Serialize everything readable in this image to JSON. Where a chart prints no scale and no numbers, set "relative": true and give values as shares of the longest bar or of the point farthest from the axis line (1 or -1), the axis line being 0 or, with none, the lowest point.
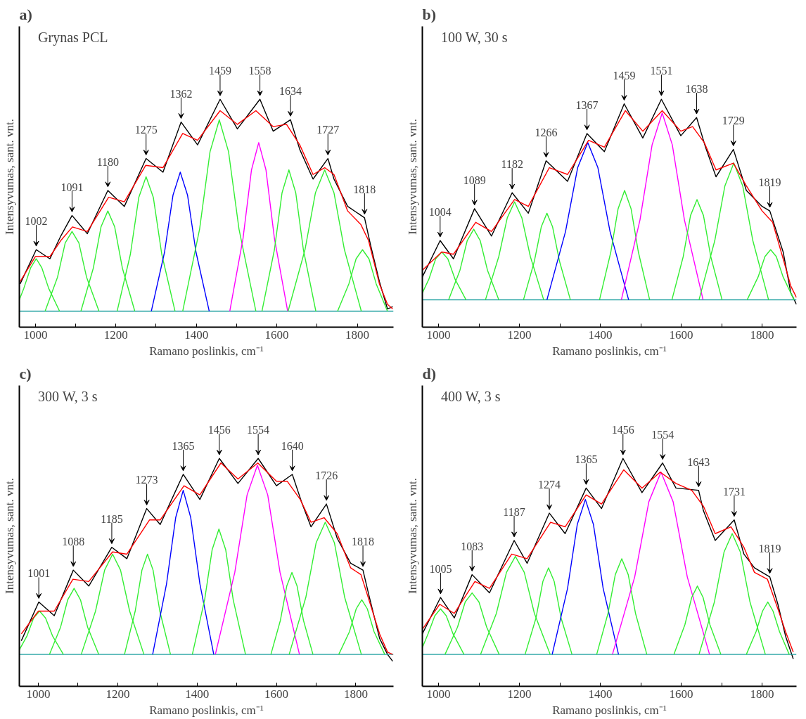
{
  "chart_data": [
    {
      "type": "line",
      "relative": true,
      "title": "a)",
      "subtitle": "Grynas PCL",
      "xlabel": "Ramano poslinkis, cm⁻¹",
      "ylabel": "Intensyvumas, sant. vnt.",
      "xlim": [
        960,
        1890
      ],
      "xticks": [
        1000,
        {
          "value": 1100,
          "label": null
        },
        1200,
        {
          "value": 1300,
          "label": null
        },
        1400,
        {
          "value": 1500,
          "label": null
        },
        1600,
        {
          "value": 1700,
          "label": null
        },
        1800
      ],
      "grid": false,
      "series": [
        {
          "color": "#000000",
          "x": [
            962,
            1002,
            1036,
            1063,
            1091,
            1129,
            1180,
            1221,
            1275,
            1317,
            1362,
            1403,
            1459,
            1502,
            1558,
            1591,
            1634,
            1657,
            1690,
            1727,
            1742,
            1776,
            1818,
            1833,
            1855,
            1875,
            1888
          ],
          "values": [
            0.19,
            0.34,
            0.3,
            0.4,
            0.49,
            0.41,
            0.6,
            0.53,
            0.74,
            0.68,
            0.9,
            0.8,
            1.0,
            0.87,
            1.0,
            0.86,
            0.91,
            0.78,
            0.65,
            0.74,
            0.65,
            0.53,
            0.48,
            0.36,
            0.2,
            0.08,
            0.09
          ]
        },
        {
          "color": "#20a0a0",
          "x": [
            960,
            1890
          ],
          "values": [
            0.07,
            0.07
          ]
        },
        {
          "color": "#33ee33",
          "x": [
            960,
            971,
            988,
            1002,
            1016,
            1033,
            1060
          ],
          "values": [
            0.12,
            0.17,
            0.26,
            0.3,
            0.26,
            0.17,
            0.07
          ]
        },
        {
          "color": "#33ee33",
          "x": [
            1024,
            1055,
            1074,
            1091,
            1108,
            1127,
            1158
          ],
          "values": [
            0.07,
            0.22,
            0.37,
            0.42,
            0.37,
            0.22,
            0.07
          ]
        },
        {
          "color": "#33ee33",
          "x": [
            1113,
            1144,
            1163,
            1180,
            1197,
            1216,
            1247
          ],
          "values": [
            0.07,
            0.26,
            0.44,
            0.51,
            0.44,
            0.26,
            0.07
          ]
        },
        {
          "color": "#33ee33",
          "x": [
            1203,
            1236,
            1257,
            1275,
            1293,
            1314,
            1347
          ],
          "values": [
            0.07,
            0.32,
            0.57,
            0.66,
            0.57,
            0.32,
            0.07
          ]
        },
        {
          "color": "#0000ff",
          "x": [
            1288,
            1321,
            1342,
            1360,
            1378,
            1399,
            1432
          ],
          "values": [
            0.07,
            0.33,
            0.58,
            0.68,
            0.58,
            0.33,
            0.07
          ]
        },
        {
          "color": "#33ee33",
          "x": [
            1366,
            1408,
            1434,
            1457,
            1480,
            1506,
            1548
          ],
          "values": [
            0.07,
            0.43,
            0.77,
            0.91,
            0.77,
            0.43,
            0.07
          ]
        },
        {
          "color": "#ff00ff",
          "x": [
            1483,
            1516,
            1537,
            1555,
            1573,
            1594,
            1627
          ],
          "values": [
            0.07,
            0.39,
            0.69,
            0.81,
            0.69,
            0.39,
            0.07
          ]
        },
        {
          "color": "#33ee33",
          "x": [
            1563,
            1594,
            1613,
            1630,
            1647,
            1666,
            1697
          ],
          "values": [
            0.07,
            0.34,
            0.59,
            0.69,
            0.59,
            0.34,
            0.07
          ]
        },
        {
          "color": "#33ee33",
          "x": [
            1628,
            1670,
            1696,
            1719,
            1742,
            1768,
            1810
          ],
          "values": [
            0.07,
            0.34,
            0.59,
            0.69,
            0.59,
            0.34,
            0.07
          ]
        },
        {
          "color": "#33ee33",
          "x": [
            1751,
            1779,
            1797,
            1813,
            1829,
            1847,
            1875
          ],
          "values": [
            0.07,
            0.19,
            0.3,
            0.34,
            0.3,
            0.19,
            0.07
          ]
        },
        {
          "color": "#ff0000",
          "x": [
            962,
            1000,
            1036,
            1063,
            1092,
            1129,
            1182,
            1221,
            1274,
            1317,
            1366,
            1403,
            1459,
            1502,
            1548,
            1591,
            1624,
            1657,
            1690,
            1719,
            1742,
            1776,
            1809,
            1828,
            1855,
            1875,
            1888
          ],
          "values": [
            0.2,
            0.31,
            0.31,
            0.38,
            0.44,
            0.42,
            0.57,
            0.55,
            0.71,
            0.7,
            0.85,
            0.82,
            0.95,
            0.89,
            0.95,
            0.88,
            0.89,
            0.8,
            0.67,
            0.7,
            0.67,
            0.51,
            0.45,
            0.38,
            0.19,
            0.1,
            0.08
          ]
        }
      ],
      "annotations": [
        {
          "text": "1002",
          "x": 1002,
          "y": 0.34
        },
        {
          "text": "1091",
          "x": 1091,
          "y": 0.49
        },
        {
          "text": "1180",
          "x": 1180,
          "y": 0.6
        },
        {
          "text": "1275",
          "x": 1275,
          "y": 0.74
        },
        {
          "text": "1362",
          "x": 1362,
          "y": 0.9
        },
        {
          "text": "1459",
          "x": 1459,
          "y": 1.0
        },
        {
          "text": "1558",
          "x": 1558,
          "y": 1.0
        },
        {
          "text": "1634",
          "x": 1634,
          "y": 0.91
        },
        {
          "text": "1727",
          "x": 1727,
          "y": 0.74
        },
        {
          "text": "1818",
          "x": 1818,
          "y": 0.48
        }
      ]
    },
    {
      "type": "line",
      "relative": true,
      "title": "b)",
      "subtitle": "100 W, 30 s",
      "xlabel": "Ramano poslinkis, cm⁻¹",
      "ylabel": "Intensyvumas, sant. vnt.",
      "xlim": [
        960,
        1885
      ],
      "xticks": [
        1000,
        {
          "value": 1100,
          "label": null
        },
        1200,
        {
          "value": 1300,
          "label": null
        },
        1400,
        {
          "value": 1500,
          "label": null
        },
        1600,
        {
          "value": 1700,
          "label": null
        },
        1800
      ],
      "grid": false,
      "series": [
        {
          "color": "#000000",
          "x": [
            960,
            1004,
            1037,
            1089,
            1131,
            1182,
            1222,
            1266,
            1319,
            1367,
            1410,
            1459,
            1505,
            1551,
            1599,
            1638,
            1660,
            1686,
            1729,
            1761,
            1800,
            1819,
            1852,
            1871,
            1885
          ],
          "values": [
            0.22,
            0.38,
            0.3,
            0.52,
            0.4,
            0.59,
            0.5,
            0.73,
            0.64,
            0.85,
            0.77,
            0.98,
            0.83,
            1.0,
            0.84,
            0.92,
            0.79,
            0.66,
            0.78,
            0.6,
            0.53,
            0.51,
            0.33,
            0.15,
            0.1
          ]
        },
        {
          "color": "#20a0a0",
          "x": [
            960,
            1885
          ],
          "values": [
            0.12,
            0.12
          ]
        },
        {
          "color": "#33ee33",
          "x": [
            960,
            976,
            993,
            1008,
            1023,
            1041,
            1068
          ],
          "values": [
            0.15,
            0.21,
            0.3,
            0.33,
            0.3,
            0.21,
            0.12
          ]
        },
        {
          "color": "#33ee33",
          "x": [
            1025,
            1053,
            1071,
            1087,
            1103,
            1121,
            1149
          ],
          "values": [
            0.12,
            0.25,
            0.38,
            0.43,
            0.38,
            0.25,
            0.12
          ]
        },
        {
          "color": "#33ee33",
          "x": [
            1116,
            1149,
            1170,
            1188,
            1206,
            1227,
            1260
          ],
          "values": [
            0.12,
            0.31,
            0.48,
            0.55,
            0.48,
            0.31,
            0.12
          ]
        },
        {
          "color": "#33ee33",
          "x": [
            1210,
            1237,
            1254,
            1268,
            1282,
            1299,
            1326
          ],
          "values": [
            0.12,
            0.29,
            0.44,
            0.5,
            0.44,
            0.29,
            0.12
          ]
        },
        {
          "color": "#0000ff",
          "x": [
            1268,
            1314,
            1344,
            1369,
            1394,
            1424,
            1470
          ],
          "values": [
            0.12,
            0.42,
            0.7,
            0.81,
            0.7,
            0.42,
            0.12
          ]
        },
        {
          "color": "#33ee33",
          "x": [
            1398,
            1426,
            1444,
            1460,
            1476,
            1494,
            1522
          ],
          "values": [
            0.12,
            0.33,
            0.52,
            0.6,
            0.52,
            0.33,
            0.12
          ]
        },
        {
          "color": "#ff00ff",
          "x": [
            1452,
            1498,
            1528,
            1553,
            1578,
            1608,
            1654
          ],
          "values": [
            0.12,
            0.47,
            0.8,
            0.94,
            0.8,
            0.47,
            0.12
          ]
        },
        {
          "color": "#33ee33",
          "x": [
            1577,
            1605,
            1623,
            1639,
            1655,
            1673,
            1701
          ],
          "values": [
            0.12,
            0.31,
            0.49,
            0.56,
            0.49,
            0.31,
            0.12
          ]
        },
        {
          "color": "#33ee33",
          "x": [
            1644,
            1683,
            1708,
            1730,
            1752,
            1777,
            1816
          ],
          "values": [
            0.12,
            0.38,
            0.62,
            0.72,
            0.62,
            0.38,
            0.12
          ]
        },
        {
          "color": "#33ee33",
          "x": [
            1763,
            1790,
            1807,
            1821,
            1835,
            1852,
            1879
          ],
          "values": [
            0.12,
            0.22,
            0.31,
            0.34,
            0.31,
            0.22,
            0.12
          ]
        },
        {
          "color": "#ff0000",
          "x": [
            960,
            1008,
            1037,
            1092,
            1131,
            1188,
            1222,
            1274,
            1319,
            1371,
            1410,
            1462,
            1505,
            1553,
            1599,
            1628,
            1657,
            1686,
            1729,
            1761,
            1800,
            1826,
            1852,
            1871,
            1885
          ],
          "values": [
            0.25,
            0.33,
            0.32,
            0.46,
            0.42,
            0.56,
            0.53,
            0.7,
            0.67,
            0.82,
            0.79,
            0.95,
            0.86,
            0.95,
            0.86,
            0.88,
            0.81,
            0.69,
            0.72,
            0.62,
            0.51,
            0.46,
            0.3,
            0.18,
            0.13
          ]
        }
      ],
      "annotations": [
        {
          "text": "1004",
          "x": 1004,
          "y": 0.38
        },
        {
          "text": "1089",
          "x": 1089,
          "y": 0.52
        },
        {
          "text": "1182",
          "x": 1182,
          "y": 0.59
        },
        {
          "text": "1266",
          "x": 1266,
          "y": 0.73
        },
        {
          "text": "1367",
          "x": 1367,
          "y": 0.85
        },
        {
          "text": "1459",
          "x": 1459,
          "y": 0.98
        },
        {
          "text": "1551",
          "x": 1551,
          "y": 1.0
        },
        {
          "text": "1638",
          "x": 1638,
          "y": 0.92
        },
        {
          "text": "1729",
          "x": 1729,
          "y": 0.78
        },
        {
          "text": "1819",
          "x": 1819,
          "y": 0.51
        }
      ]
    },
    {
      "type": "line",
      "relative": true,
      "title": "c)",
      "subtitle": "300 W, 3 s",
      "xlabel": "Ramano poslinkis, cm⁻¹",
      "ylabel": "Intensyvumas, sant. vnt.",
      "xlim": [
        952,
        1895
      ],
      "xticks": [
        1000,
        {
          "value": 1100,
          "label": null
        },
        1200,
        {
          "value": 1300,
          "label": null
        },
        1400,
        {
          "value": 1500,
          "label": null
        },
        1600,
        {
          "value": 1700,
          "label": null
        },
        1800
      ],
      "grid": false,
      "series": [
        {
          "color": "#000000",
          "x": [
            957,
            1001,
            1040,
            1088,
            1127,
            1185,
            1223,
            1273,
            1307,
            1365,
            1407,
            1456,
            1503,
            1554,
            1600,
            1640,
            1665,
            1687,
            1726,
            1753,
            1787,
            1818,
            1833,
            1860,
            1880,
            1893
          ],
          "values": [
            0.2,
            0.37,
            0.31,
            0.51,
            0.44,
            0.61,
            0.56,
            0.78,
            0.71,
            0.93,
            0.82,
            1.0,
            0.89,
            1.0,
            0.88,
            0.93,
            0.8,
            0.7,
            0.8,
            0.65,
            0.54,
            0.51,
            0.4,
            0.21,
            0.14,
            0.11
          ]
        },
        {
          "color": "#20a0a0",
          "x": [
            952,
            1895
          ],
          "values": [
            0.14,
            0.14
          ]
        },
        {
          "color": "#33ee33",
          "x": [
            952,
            971,
            988,
            1003,
            1018,
            1036,
            1063
          ],
          "values": [
            0.16,
            0.22,
            0.3,
            0.33,
            0.3,
            0.22,
            0.14
          ]
        },
        {
          "color": "#33ee33",
          "x": [
            1028,
            1056,
            1074,
            1090,
            1106,
            1124,
            1152
          ],
          "values": [
            0.14,
            0.26,
            0.38,
            0.43,
            0.38,
            0.26,
            0.14
          ]
        },
        {
          "color": "#33ee33",
          "x": [
            1108,
            1144,
            1167,
            1187,
            1207,
            1230,
            1266
          ],
          "values": [
            0.14,
            0.33,
            0.51,
            0.58,
            0.51,
            0.33,
            0.14
          ]
        },
        {
          "color": "#33ee33",
          "x": [
            1217,
            1244,
            1261,
            1275,
            1289,
            1306,
            1333
          ],
          "values": [
            0.14,
            0.33,
            0.51,
            0.58,
            0.51,
            0.33,
            0.14
          ]
        },
        {
          "color": "#0000ff",
          "x": [
            1288,
            1323,
            1346,
            1365,
            1384,
            1407,
            1442
          ],
          "values": [
            0.14,
            0.45,
            0.74,
            0.86,
            0.74,
            0.45,
            0.14
          ]
        },
        {
          "color": "#33ee33",
          "x": [
            1388,
            1419,
            1438,
            1455,
            1472,
            1491,
            1522
          ],
          "values": [
            0.14,
            0.38,
            0.6,
            0.69,
            0.6,
            0.38,
            0.14
          ]
        },
        {
          "color": "#ff00ff",
          "x": [
            1446,
            1495,
            1526,
            1552,
            1578,
            1609,
            1658
          ],
          "values": [
            0.14,
            0.5,
            0.84,
            0.97,
            0.84,
            0.5,
            0.14
          ]
        },
        {
          "color": "#33ee33",
          "x": [
            1586,
            1610,
            1626,
            1639,
            1652,
            1668,
            1692
          ],
          "values": [
            0.14,
            0.29,
            0.44,
            0.5,
            0.44,
            0.29,
            0.14
          ]
        },
        {
          "color": "#33ee33",
          "x": [
            1632,
            1674,
            1700,
            1723,
            1746,
            1772,
            1814
          ],
          "values": [
            0.14,
            0.39,
            0.63,
            0.72,
            0.63,
            0.39,
            0.14
          ]
        },
        {
          "color": "#33ee33",
          "x": [
            1757,
            1784,
            1801,
            1815,
            1829,
            1846,
            1873
          ],
          "values": [
            0.14,
            0.24,
            0.34,
            0.38,
            0.34,
            0.24,
            0.14
          ]
        },
        {
          "color": "#ff0000",
          "x": [
            957,
            1000,
            1040,
            1087,
            1127,
            1187,
            1223,
            1280,
            1307,
            1367,
            1407,
            1460,
            1503,
            1553,
            1600,
            1627,
            1660,
            1687,
            1720,
            1753,
            1787,
            1813,
            1833,
            1860,
            1880,
            1893
          ],
          "values": [
            0.23,
            0.33,
            0.33,
            0.47,
            0.46,
            0.59,
            0.58,
            0.73,
            0.73,
            0.88,
            0.84,
            0.98,
            0.91,
            0.98,
            0.9,
            0.9,
            0.82,
            0.72,
            0.74,
            0.67,
            0.52,
            0.49,
            0.38,
            0.23,
            0.15,
            0.14
          ]
        }
      ],
      "annotations": [
        {
          "text": "1001",
          "x": 1001,
          "y": 0.37
        },
        {
          "text": "1088",
          "x": 1088,
          "y": 0.51
        },
        {
          "text": "1185",
          "x": 1185,
          "y": 0.61
        },
        {
          "text": "1273",
          "x": 1273,
          "y": 0.78
        },
        {
          "text": "1365",
          "x": 1365,
          "y": 0.93
        },
        {
          "text": "1456",
          "x": 1456,
          "y": 1.0
        },
        {
          "text": "1554",
          "x": 1554,
          "y": 1.0
        },
        {
          "text": "1640",
          "x": 1640,
          "y": 0.93
        },
        {
          "text": "1726",
          "x": 1726,
          "y": 0.8
        },
        {
          "text": "1818",
          "x": 1818,
          "y": 0.51
        }
      ]
    },
    {
      "type": "line",
      "relative": true,
      "title": "d)",
      "subtitle": "400 W, 3 s",
      "xlabel": "Ramano poslinkis, cm⁻¹",
      "ylabel": "Intensyvumas, sant. vnt.",
      "xlim": [
        960,
        1885
      ],
      "xticks": [
        1000,
        {
          "value": 1100,
          "label": null
        },
        1200,
        {
          "value": 1300,
          "label": null
        },
        1400,
        {
          "value": 1500,
          "label": null
        },
        1600,
        {
          "value": 1700,
          "label": null
        },
        1800
      ],
      "grid": false,
      "series": [
        {
          "color": "#000000",
          "x": [
            960,
            1005,
            1039,
            1083,
            1126,
            1187,
            1219,
            1274,
            1313,
            1365,
            1403,
            1456,
            1503,
            1554,
            1587,
            1643,
            1655,
            1684,
            1731,
            1755,
            1781,
            1819,
            1839,
            1858,
            1877
          ],
          "values": [
            0.23,
            0.39,
            0.3,
            0.49,
            0.41,
            0.64,
            0.54,
            0.76,
            0.67,
            0.87,
            0.78,
            1.0,
            0.85,
            0.98,
            0.87,
            0.86,
            0.77,
            0.64,
            0.73,
            0.58,
            0.52,
            0.48,
            0.36,
            0.22,
            0.12
          ]
        },
        {
          "color": "#20a0a0",
          "x": [
            960,
            1885
          ],
          "values": [
            0.14,
            0.14
          ]
        },
        {
          "color": "#33ee33",
          "x": [
            960,
            974,
            991,
            1005,
            1019,
            1036,
            1063
          ],
          "values": [
            0.17,
            0.23,
            0.31,
            0.34,
            0.31,
            0.23,
            0.14
          ]
        },
        {
          "color": "#33ee33",
          "x": [
            1016,
            1047,
            1066,
            1083,
            1100,
            1119,
            1150
          ],
          "values": [
            0.14,
            0.26,
            0.37,
            0.41,
            0.37,
            0.26,
            0.14
          ]
        },
        {
          "color": "#33ee33",
          "x": [
            1104,
            1143,
            1168,
            1190,
            1212,
            1237,
            1276
          ],
          "values": [
            0.14,
            0.32,
            0.5,
            0.57,
            0.5,
            0.32,
            0.14
          ]
        },
        {
          "color": "#33ee33",
          "x": [
            1214,
            1241,
            1258,
            1272,
            1286,
            1303,
            1330
          ],
          "values": [
            0.14,
            0.3,
            0.46,
            0.52,
            0.46,
            0.3,
            0.14
          ]
        },
        {
          "color": "#0000ff",
          "x": [
            1281,
            1319,
            1343,
            1363,
            1383,
            1407,
            1445
          ],
          "values": [
            0.14,
            0.43,
            0.71,
            0.82,
            0.71,
            0.43,
            0.14
          ]
        },
        {
          "color": "#33ee33",
          "x": [
            1391,
            1419,
            1437,
            1453,
            1469,
            1487,
            1515
          ],
          "values": [
            0.14,
            0.32,
            0.49,
            0.56,
            0.49,
            0.32,
            0.14
          ]
        },
        {
          "color": "#ff00ff",
          "x": [
            1430,
            1485,
            1520,
            1550,
            1580,
            1615,
            1670
          ],
          "values": [
            0.14,
            0.48,
            0.81,
            0.94,
            0.81,
            0.48,
            0.14
          ]
        },
        {
          "color": "#33ee33",
          "x": [
            1582,
            1609,
            1626,
            1640,
            1654,
            1671,
            1698
          ],
          "values": [
            0.14,
            0.27,
            0.39,
            0.44,
            0.39,
            0.27,
            0.14
          ]
        },
        {
          "color": "#33ee33",
          "x": [
            1644,
            1682,
            1706,
            1726,
            1746,
            1770,
            1808
          ],
          "values": [
            0.14,
            0.37,
            0.59,
            0.67,
            0.59,
            0.37,
            0.14
          ]
        },
        {
          "color": "#33ee33",
          "x": [
            1761,
            1785,
            1801,
            1814,
            1827,
            1843,
            1867
          ],
          "values": [
            0.14,
            0.24,
            0.33,
            0.37,
            0.33,
            0.24,
            0.14
          ]
        },
        {
          "color": "#ff0000",
          "x": [
            960,
            1003,
            1039,
            1090,
            1126,
            1181,
            1219,
            1277,
            1313,
            1365,
            1403,
            1458,
            1503,
            1548,
            1587,
            1626,
            1655,
            1684,
            1723,
            1755,
            1781,
            1813,
            1839,
            1858,
            1877
          ],
          "values": [
            0.25,
            0.36,
            0.32,
            0.46,
            0.43,
            0.58,
            0.56,
            0.72,
            0.7,
            0.84,
            0.8,
            0.95,
            0.87,
            0.94,
            0.89,
            0.86,
            0.79,
            0.67,
            0.7,
            0.61,
            0.5,
            0.47,
            0.34,
            0.24,
            0.15
          ]
        }
      ],
      "annotations": [
        {
          "text": "1005",
          "x": 1005,
          "y": 0.39
        },
        {
          "text": "1083",
          "x": 1083,
          "y": 0.49
        },
        {
          "text": "1187",
          "x": 1187,
          "y": 0.64
        },
        {
          "text": "1274",
          "x": 1274,
          "y": 0.76
        },
        {
          "text": "1365",
          "x": 1365,
          "y": 0.87
        },
        {
          "text": "1456",
          "x": 1456,
          "y": 1.0
        },
        {
          "text": "1554",
          "x": 1554,
          "y": 0.98
        },
        {
          "text": "1643",
          "x": 1643,
          "y": 0.86
        },
        {
          "text": "1731",
          "x": 1731,
          "y": 0.73
        },
        {
          "text": "1819",
          "x": 1819,
          "y": 0.48
        }
      ]
    }
  ]
}
